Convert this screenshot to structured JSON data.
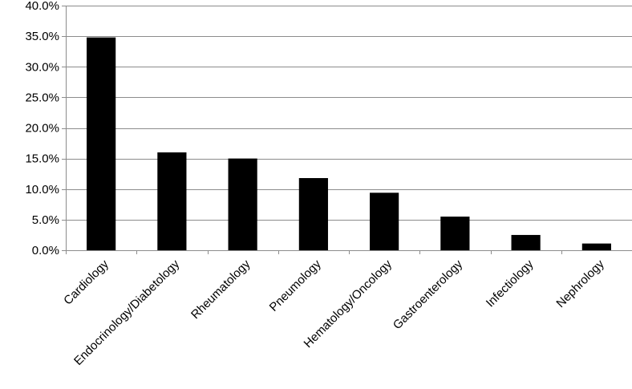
{
  "chart_data": {
    "type": "bar",
    "title": "",
    "xlabel": "",
    "ylabel": "",
    "categories": [
      "Cardiology",
      "Endocrinology/Diabetology",
      "Rheumatology",
      "Pneumology",
      "Hematology/Oncology",
      "Gastroenterology",
      "Infectiology",
      "Nephrology"
    ],
    "values": [
      34.8,
      16.0,
      15.0,
      11.8,
      9.4,
      5.5,
      2.5,
      1.1
    ],
    "ylim": [
      0,
      40
    ],
    "yticks": [
      0,
      5,
      10,
      15,
      20,
      25,
      30,
      35,
      40
    ],
    "ytick_labels": [
      "0.0%",
      "5.0%",
      "10.0%",
      "15.0%",
      "20.0%",
      "25.0%",
      "30.0%",
      "35.0%",
      "40.0%"
    ],
    "grid": true,
    "legend": "none",
    "bar_color": "#000000",
    "grid_color": "#8c8c8c"
  }
}
